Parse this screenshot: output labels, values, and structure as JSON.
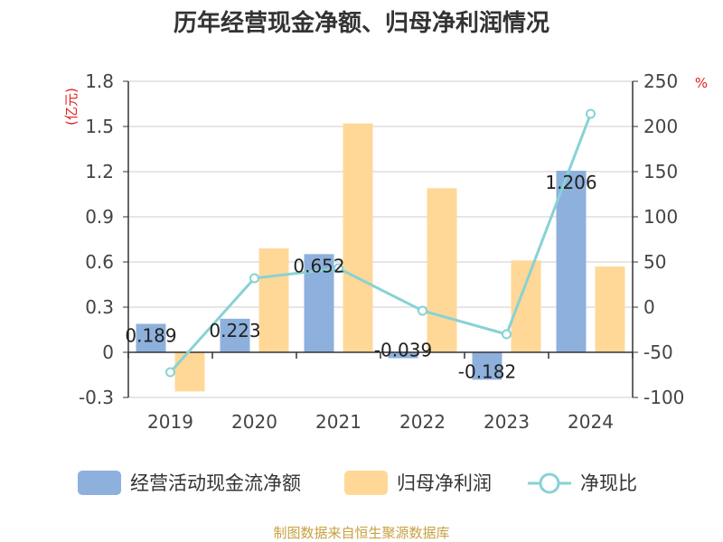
{
  "chart_data": {
    "type": "bar",
    "title": "历年经营现金净额、归母净利润情况",
    "categories": [
      "2019",
      "2020",
      "2021",
      "2022",
      "2023",
      "2024"
    ],
    "series": [
      {
        "name": "经营活动现金流净额",
        "axis": "left",
        "kind": "bar",
        "color": "#8eb0dd",
        "values": [
          0.189,
          0.223,
          0.652,
          -0.039,
          -0.182,
          1.206
        ],
        "labels": [
          "0.189",
          "0.223",
          "0.652",
          "-0.039",
          "-0.182",
          "1.206"
        ]
      },
      {
        "name": "归母净利润",
        "axis": "left",
        "kind": "bar",
        "color": "#ffd898",
        "values": [
          -0.26,
          0.69,
          1.52,
          1.09,
          0.61,
          0.57
        ]
      },
      {
        "name": "净现比",
        "axis": "right",
        "kind": "line",
        "color": "#88d2d4",
        "values": [
          -72,
          32,
          43,
          -4,
          -30,
          214
        ]
      }
    ],
    "left_axis": {
      "unit": "(亿元)",
      "ylim": [
        -0.3,
        1.8
      ],
      "ticks": [
        "-0.3",
        "0",
        "0.3",
        "0.6",
        "0.9",
        "1.2",
        "1.5",
        "1.8"
      ]
    },
    "right_axis": {
      "unit": "%",
      "ylim": [
        -100,
        250
      ],
      "ticks": [
        "-100",
        "-50",
        "0",
        "50",
        "100",
        "150",
        "200",
        "250"
      ]
    },
    "legend_position": "bottom",
    "grid": true
  },
  "source": "制图数据来自恒生聚源数据库"
}
